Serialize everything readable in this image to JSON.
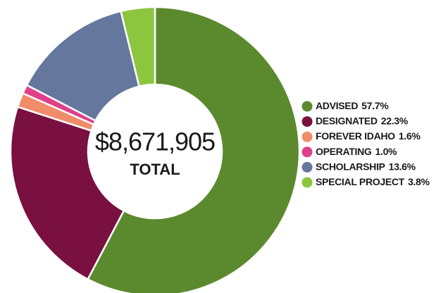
{
  "chart_data": {
    "type": "donut",
    "center_text": "$8,671,905",
    "center_label": "TOTAL",
    "categories": [
      "ADVISED",
      "DESIGNATED",
      "FOREVER IDAHO",
      "OPERATING",
      "SCHOLARSHIP",
      "SPECIAL PROJECT"
    ],
    "values": [
      57.7,
      22.3,
      1.6,
      1.0,
      13.6,
      3.8
    ],
    "value_labels": [
      "57.7%",
      "22.3%",
      "1.6%",
      "1.0%",
      "13.6%",
      "3.8%"
    ],
    "colors": [
      "#5b8a2e",
      "#7a1040",
      "#f08c6a",
      "#e0408a",
      "#66779e",
      "#8cc63f"
    ],
    "legend": "right"
  }
}
